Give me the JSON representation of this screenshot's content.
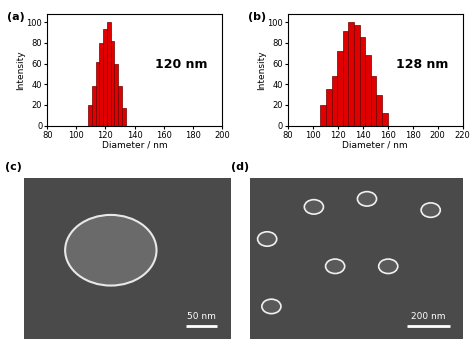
{
  "chart_data": [
    {
      "type": "histogram",
      "label": "(a)",
      "annotation": "120 nm",
      "x_label": "Diameter / nm",
      "y_label": "Intensity",
      "bins": [
        108,
        110.6,
        113.2,
        115.8,
        118.4,
        121,
        123.6,
        126.2,
        128.8,
        131.4,
        134
      ],
      "values": [
        20,
        38,
        62,
        80,
        93,
        100,
        82,
        60,
        38,
        17
      ],
      "color": "#e00000",
      "xlim": [
        80,
        200
      ],
      "xticks": [
        80,
        100,
        120,
        140,
        160,
        180,
        200
      ],
      "ylim": [
        0,
        108
      ],
      "yticks": [
        0,
        20,
        40,
        60,
        80,
        100
      ]
    },
    {
      "type": "histogram",
      "label": "(b)",
      "annotation": "128 nm",
      "x_label": "Diameter / nm",
      "y_label": "Intensity",
      "bins": [
        106,
        110.5,
        115,
        119.5,
        124,
        128.5,
        133,
        137.5,
        142,
        146.5,
        151,
        155.5,
        160
      ],
      "values": [
        20,
        35,
        48,
        72,
        92,
        100,
        97,
        86,
        68,
        48,
        30,
        12
      ],
      "color": "#e00000",
      "xlim": [
        80,
        220
      ],
      "xticks": [
        80,
        100,
        120,
        140,
        160,
        180,
        200,
        220
      ],
      "ylim": [
        0,
        108
      ],
      "yticks": [
        0,
        20,
        40,
        60,
        80,
        100
      ]
    }
  ],
  "images": [
    {
      "label": "(c)",
      "scale_bar": "50 nm"
    },
    {
      "label": "(d)",
      "scale_bar": "200 nm"
    }
  ]
}
